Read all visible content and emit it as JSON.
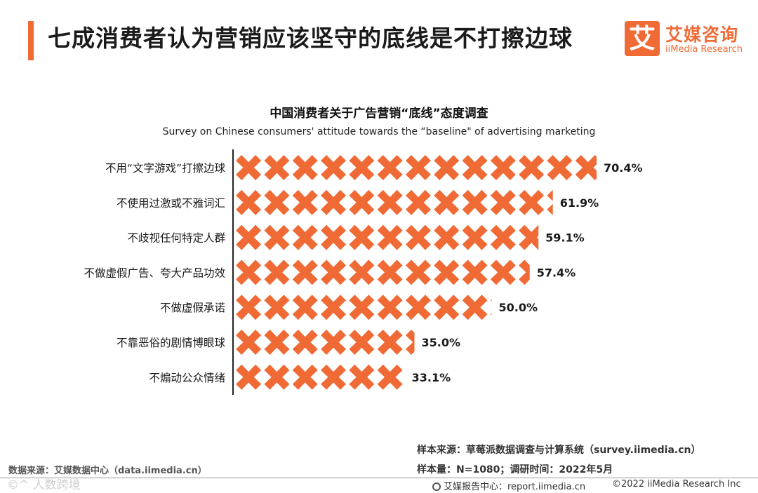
{
  "header": {
    "title": "七成消费者认为营销应该坚守的底线是不打擦边球"
  },
  "logo": {
    "mark": "艾",
    "cn": "艾媒咨询",
    "en": "iiMedia Research"
  },
  "chart_data": {
    "type": "bar",
    "title": "中国消费者关于广告营销“底线”态度调查",
    "subtitle": "Survey on Chinese consumers' attitude towards the “baseline\" of advertising marketing",
    "categories": [
      "不用“文字游戏”打擦边球",
      "不使用过激或不雅词汇",
      "不歧视任何特定人群",
      "不做虚假广告、夸大产品功效",
      "不做虚假承诺",
      "不靠恶俗的剧情博眼球",
      "不煽动公众情绪"
    ],
    "values": [
      70.4,
      61.9,
      59.1,
      57.4,
      50.0,
      35.0,
      33.1
    ],
    "value_labels": [
      "70.4%",
      "61.9%",
      "59.1%",
      "57.4%",
      "50.0%",
      "35.0%",
      "33.1%"
    ],
    "unit": "%",
    "orientation": "horizontal",
    "mark_shape": "cross-icon",
    "grid": false,
    "colors": {
      "bar": "#F06A35"
    }
  },
  "footer": {
    "source": "数据来源：艾媒数据中心（data.iimedia.cn）",
    "sample_source": "样本来源：草莓派数据调查与计算系统（survey.iimedia.cn）",
    "sample_size": "样本量：N=1080；调研时间：2022年5月",
    "report_center": "艾媒报告中心：report.iimedia.cn",
    "copyright": "©2022  iiMedia Research  Inc",
    "watermark": "©^ 人数跨境"
  },
  "colors": {
    "accent": "#F06A35"
  }
}
